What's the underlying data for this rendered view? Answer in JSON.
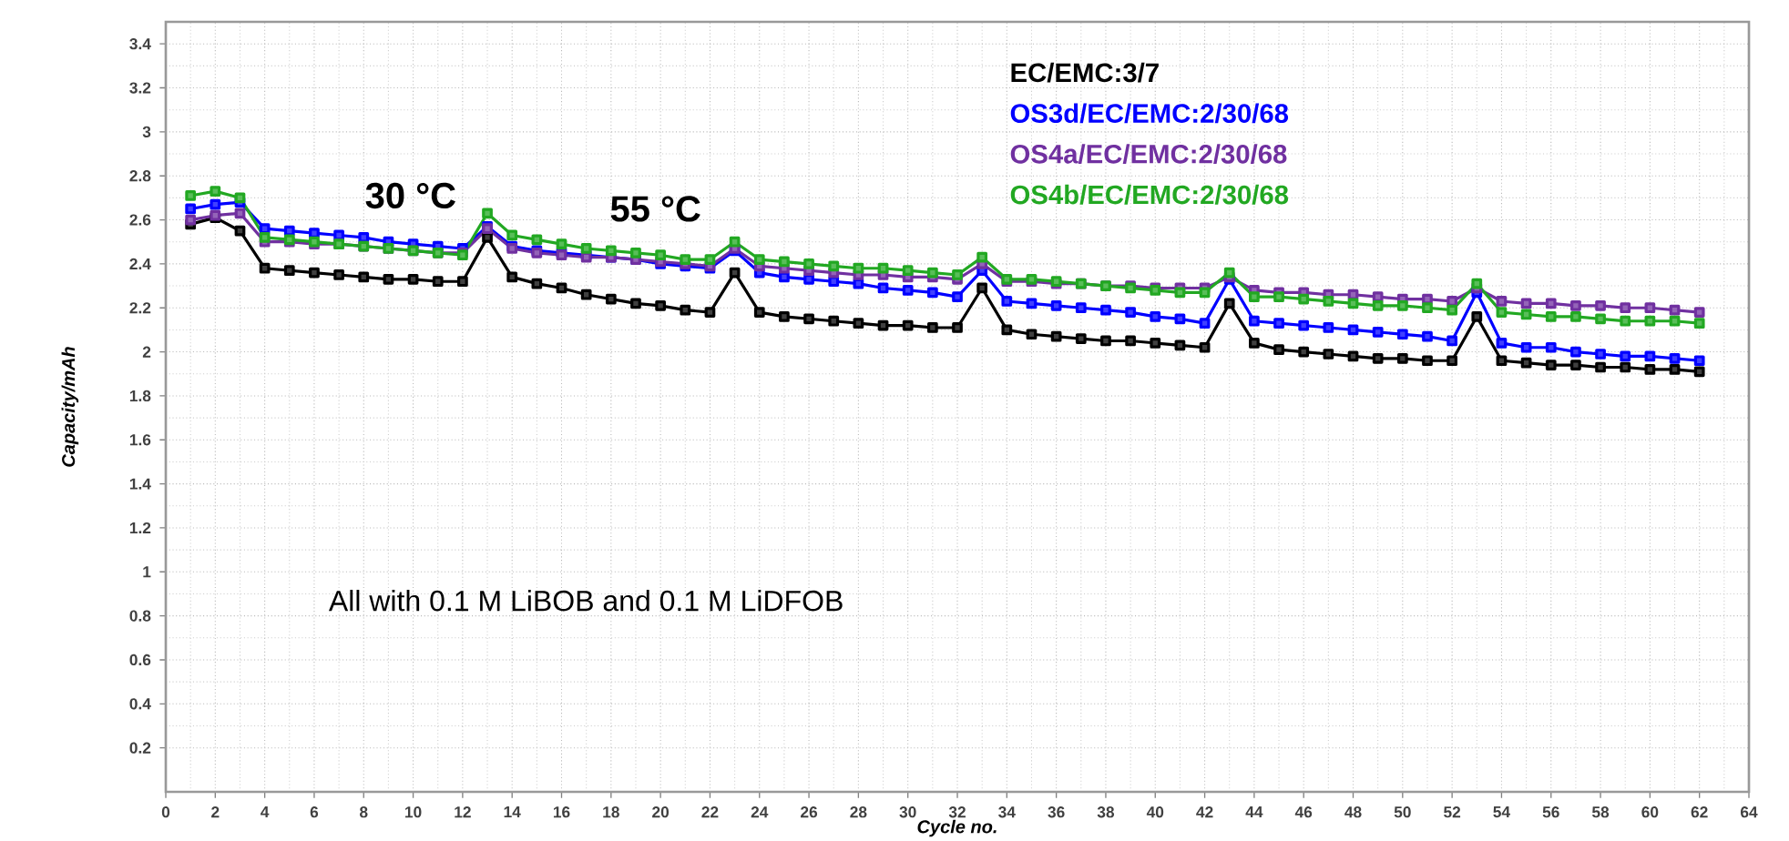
{
  "chart_data": {
    "type": "line",
    "xlabel": "Cycle no.",
    "ylabel": "Capacity/mAh",
    "annotations": [
      "30 °C",
      "55 °C",
      "All with 0.1 M LiBOB and 0.1 M LiDFOB"
    ],
    "x": [
      1,
      2,
      3,
      4,
      5,
      6,
      7,
      8,
      9,
      10,
      11,
      12,
      13,
      14,
      15,
      16,
      17,
      18,
      19,
      20,
      21,
      22,
      23,
      24,
      25,
      26,
      27,
      28,
      29,
      30,
      31,
      32,
      33,
      34,
      35,
      36,
      37,
      38,
      39,
      40,
      41,
      42,
      43,
      44,
      45,
      46,
      47,
      48,
      49,
      50,
      51,
      52,
      53,
      54,
      55,
      56,
      57,
      58,
      59,
      60,
      61,
      62
    ],
    "series": [
      {
        "name": "EC/EMC:3/7",
        "color": "#000000",
        "values": [
          2.58,
          2.61,
          2.55,
          2.38,
          2.37,
          2.36,
          2.35,
          2.34,
          2.33,
          2.33,
          2.32,
          2.32,
          2.52,
          2.34,
          2.31,
          2.29,
          2.26,
          2.24,
          2.22,
          2.21,
          2.19,
          2.18,
          2.36,
          2.18,
          2.16,
          2.15,
          2.14,
          2.13,
          2.12,
          2.12,
          2.11,
          2.11,
          2.29,
          2.1,
          2.08,
          2.07,
          2.06,
          2.05,
          2.05,
          2.04,
          2.03,
          2.02,
          2.22,
          2.04,
          2.01,
          2.0,
          1.99,
          1.98,
          1.97,
          1.97,
          1.96,
          1.96,
          2.16,
          1.96,
          1.95,
          1.94,
          1.94,
          1.93,
          1.93,
          1.92,
          1.92,
          1.91
        ]
      },
      {
        "name": "OS3d/EC/EMC:2/30/68",
        "color": "#0000ff",
        "values": [
          2.65,
          2.67,
          2.68,
          2.56,
          2.55,
          2.54,
          2.53,
          2.52,
          2.5,
          2.49,
          2.48,
          2.47,
          2.57,
          2.48,
          2.46,
          2.45,
          2.44,
          2.43,
          2.42,
          2.4,
          2.39,
          2.38,
          2.46,
          2.36,
          2.34,
          2.33,
          2.32,
          2.31,
          2.29,
          2.28,
          2.27,
          2.25,
          2.37,
          2.23,
          2.22,
          2.21,
          2.2,
          2.19,
          2.18,
          2.16,
          2.15,
          2.13,
          2.33,
          2.14,
          2.13,
          2.12,
          2.11,
          2.1,
          2.09,
          2.08,
          2.07,
          2.05,
          2.27,
          2.04,
          2.02,
          2.02,
          2.0,
          1.99,
          1.98,
          1.98,
          1.97,
          1.96
        ]
      },
      {
        "name": "OS4a/EC/EMC:2/30/68",
        "color": "#7030a0",
        "values": [
          2.6,
          2.62,
          2.63,
          2.5,
          2.5,
          2.49,
          2.49,
          2.48,
          2.47,
          2.46,
          2.45,
          2.45,
          2.56,
          2.47,
          2.45,
          2.44,
          2.43,
          2.43,
          2.42,
          2.41,
          2.4,
          2.39,
          2.47,
          2.39,
          2.38,
          2.37,
          2.36,
          2.35,
          2.35,
          2.34,
          2.34,
          2.33,
          2.4,
          2.32,
          2.32,
          2.31,
          2.31,
          2.3,
          2.3,
          2.29,
          2.29,
          2.29,
          2.34,
          2.28,
          2.27,
          2.27,
          2.26,
          2.26,
          2.25,
          2.24,
          2.24,
          2.23,
          2.29,
          2.23,
          2.22,
          2.22,
          2.21,
          2.21,
          2.2,
          2.2,
          2.19,
          2.18
        ]
      },
      {
        "name": "OS4b/EC/EMC:2/30/68",
        "color": "#22a822",
        "values": [
          2.71,
          2.73,
          2.7,
          2.52,
          2.51,
          2.5,
          2.49,
          2.48,
          2.47,
          2.46,
          2.45,
          2.44,
          2.63,
          2.53,
          2.51,
          2.49,
          2.47,
          2.46,
          2.45,
          2.44,
          2.42,
          2.42,
          2.5,
          2.42,
          2.41,
          2.4,
          2.39,
          2.38,
          2.38,
          2.37,
          2.36,
          2.35,
          2.43,
          2.33,
          2.33,
          2.32,
          2.31,
          2.3,
          2.29,
          2.28,
          2.27,
          2.27,
          2.36,
          2.25,
          2.25,
          2.24,
          2.23,
          2.22,
          2.21,
          2.21,
          2.2,
          2.19,
          2.31,
          2.18,
          2.17,
          2.16,
          2.16,
          2.15,
          2.14,
          2.14,
          2.14,
          2.13
        ]
      }
    ],
    "xlim": [
      0,
      64
    ],
    "ylim": [
      0,
      3.5
    ],
    "xticks": [
      0,
      2,
      4,
      6,
      8,
      10,
      12,
      14,
      16,
      18,
      20,
      22,
      24,
      26,
      28,
      30,
      32,
      34,
      36,
      38,
      40,
      42,
      44,
      46,
      48,
      50,
      52,
      54,
      56,
      58,
      60,
      62,
      64
    ],
    "yticks": [
      0.2,
      0.4,
      0.6,
      0.8,
      1,
      1.2,
      1.4,
      1.6,
      1.8,
      2,
      2.2,
      2.4,
      2.6,
      2.8,
      3,
      3.2,
      3.4
    ],
    "grid": true,
    "legend": "top right",
    "marker": "square",
    "line_style": "solid"
  }
}
